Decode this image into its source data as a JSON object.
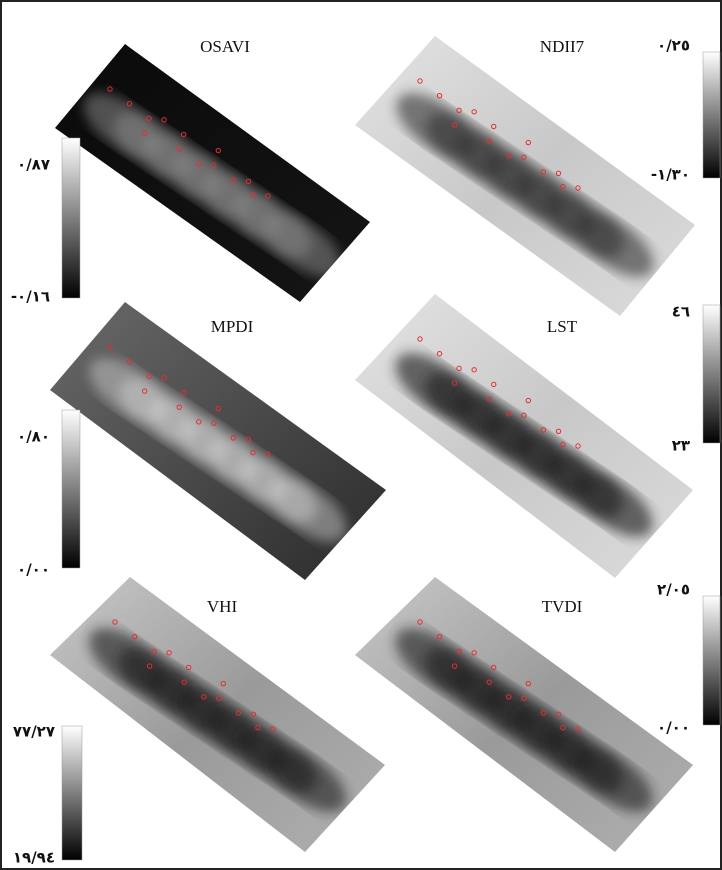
{
  "panels": [
    {
      "title": "OSAVI",
      "colorbar": {
        "max": "٠/٨٧",
        "min": "-٠/١٦"
      }
    },
    {
      "title": "NDII7",
      "colorbar": {
        "max": "٠/٢٥",
        "min": "-١/٣٠"
      }
    },
    {
      "title": "MPDI",
      "colorbar": {
        "max": "٠/٨٠",
        "min": "٠/٠٠"
      }
    },
    {
      "title": "LST",
      "colorbar": {
        "max": "٤٦",
        "min": "٢٣"
      }
    },
    {
      "title": "VHI",
      "colorbar": {
        "max": "٧٧/٢٧",
        "min": "١٩/٩٤"
      }
    },
    {
      "title": "TVDI",
      "colorbar": {
        "max": "٢/٠٥",
        "min": "٠/٠٠"
      }
    }
  ]
}
